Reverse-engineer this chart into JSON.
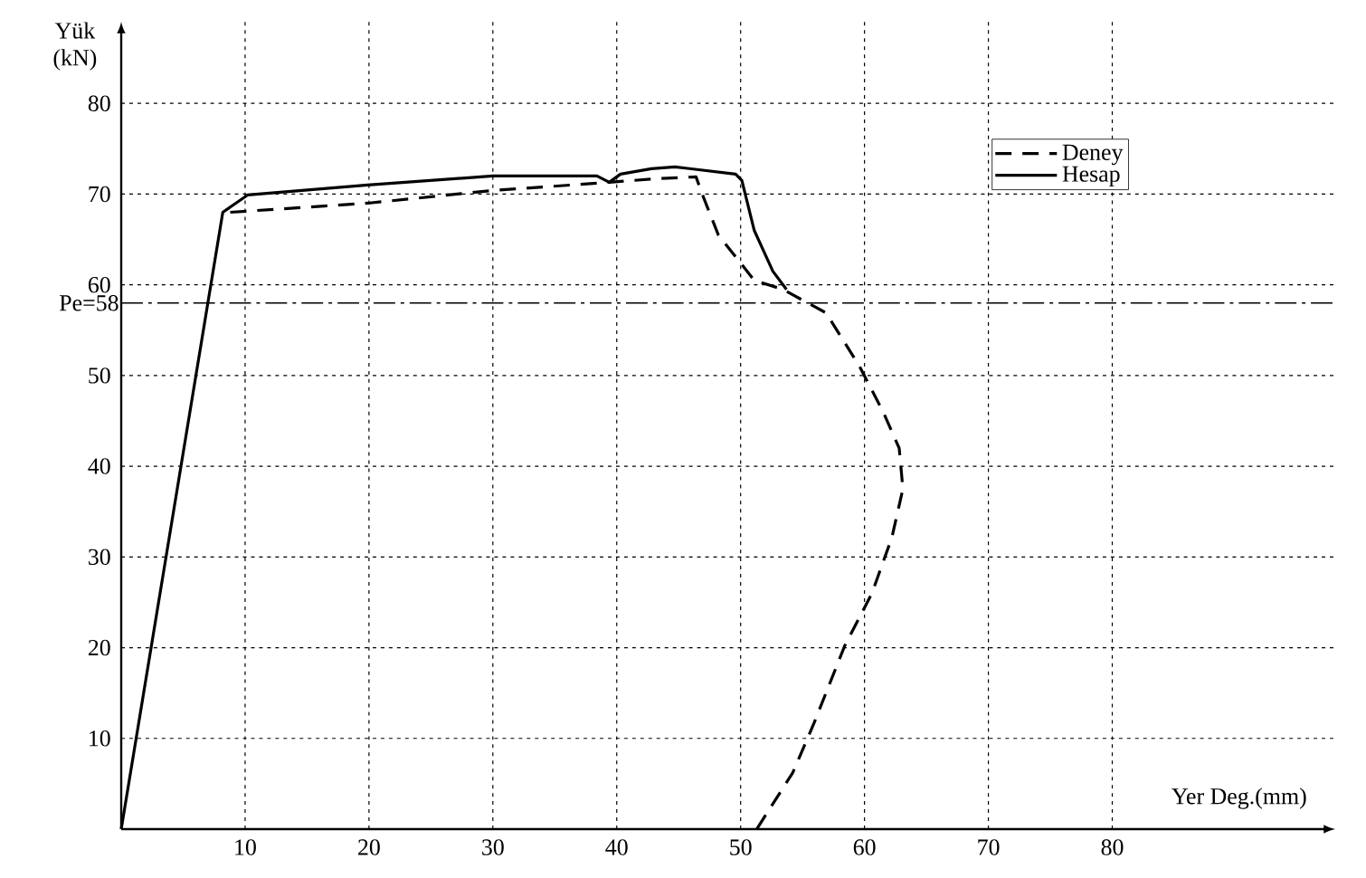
{
  "chart_data": {
    "type": "line",
    "xlabel": "Yer Deg.(mm)",
    "ylabel": "Yük (kN)",
    "xlim": [
      0,
      98
    ],
    "ylim": [
      0,
      89
    ],
    "xticks": [
      10,
      20,
      30,
      40,
      50,
      60,
      70,
      80
    ],
    "yticks": [
      10,
      20,
      30,
      40,
      50,
      60,
      70,
      80
    ],
    "grid": true,
    "legend": "top right",
    "ref_lines": [
      {
        "axis": "y",
        "value": 58,
        "label": "Pe=58",
        "line_style": "dashdot"
      }
    ],
    "series": [
      {
        "name": "Deney",
        "color": "#000000",
        "line_style": "dashed",
        "x": [
          8.8,
          19.9,
          30,
          39.4,
          43.2,
          46.4,
          46.9,
          48.2,
          51.1,
          53.4,
          56.9,
          59.6,
          61.5,
          62.8,
          63.1,
          62.2,
          60.6,
          58.4,
          55.9,
          54.2,
          51.3
        ],
        "values": [
          68,
          69,
          70.4,
          71.3,
          71.7,
          71.9,
          70,
          65.5,
          60.5,
          59.5,
          56.9,
          51,
          46,
          42,
          37.5,
          32.1,
          26,
          20.2,
          11.6,
          6.2,
          0
        ]
      },
      {
        "name": "Hesap",
        "color": "#000000",
        "line_style": "solid",
        "x": [
          0,
          8.2,
          10.2,
          19.9,
          30,
          38.4,
          39.4,
          40.3,
          42.8,
          44.7,
          49.6,
          50.1,
          51.1,
          52.6,
          53.7
        ],
        "values": [
          0,
          68,
          69.9,
          71,
          72,
          72,
          71.3,
          72.2,
          72.8,
          73,
          72.2,
          71.5,
          66,
          61.5,
          59.5
        ]
      }
    ]
  }
}
